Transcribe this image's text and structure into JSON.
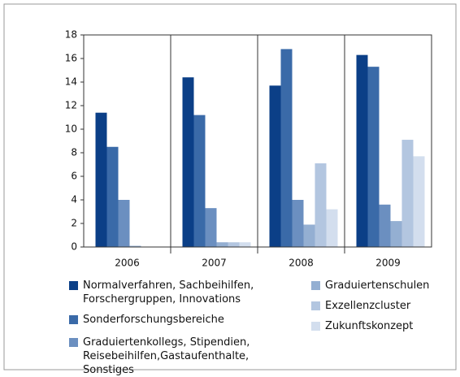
{
  "chart_data": {
    "type": "bar",
    "categories": [
      "2006",
      "2007",
      "2008",
      "2009"
    ],
    "series": [
      {
        "name": "Normalverfahren, Sachbeihilfen, Forschergruppen, Innovations",
        "color": "#0b3f87",
        "values": [
          11.4,
          14.4,
          13.7,
          16.3
        ]
      },
      {
        "name": "Sonderforschungsbereiche",
        "color": "#3a6aa8",
        "values": [
          8.5,
          11.2,
          16.8,
          15.3
        ]
      },
      {
        "name": "Graduiertenkollegs, Stipendien, Reisebeihilfen,Gastaufenthalte, Sonstiges",
        "color": "#6b8fc0",
        "values": [
          4.0,
          3.3,
          4.0,
          3.6
        ]
      },
      {
        "name": "Graduiertenschulen",
        "color": "#94afd2",
        "values": [
          0.1,
          0.4,
          1.9,
          2.2
        ]
      },
      {
        "name": "Exzellenzcluster",
        "color": "#b3c6e0",
        "values": [
          0,
          0.4,
          7.1,
          9.1
        ]
      },
      {
        "name": "Zukunftskonzept",
        "color": "#d3deee",
        "values": [
          0,
          0.4,
          3.2,
          7.7
        ]
      }
    ],
    "ylim": [
      0,
      18
    ],
    "yticks": [
      0,
      2,
      4,
      6,
      8,
      10,
      12,
      14,
      16,
      18
    ]
  }
}
